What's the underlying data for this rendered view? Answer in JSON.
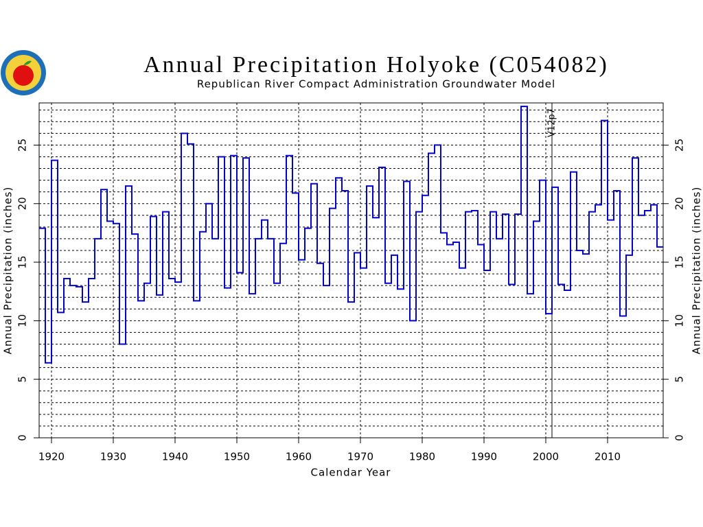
{
  "chart_data": {
    "type": "step",
    "title": "Annual Precipitation Holyoke (C054082)",
    "subtitle": "Republican River Compact Administration Groundwater Model",
    "x_label": "Calendar Year",
    "y_label": "Annual Precipitation (inches)",
    "x": [
      1918,
      1919,
      1920,
      1921,
      1922,
      1923,
      1924,
      1925,
      1926,
      1927,
      1928,
      1929,
      1930,
      1931,
      1932,
      1933,
      1934,
      1935,
      1936,
      1937,
      1938,
      1939,
      1940,
      1941,
      1942,
      1943,
      1944,
      1945,
      1946,
      1947,
      1948,
      1949,
      1950,
      1951,
      1952,
      1953,
      1954,
      1955,
      1956,
      1957,
      1958,
      1959,
      1960,
      1961,
      1962,
      1963,
      1964,
      1965,
      1966,
      1967,
      1968,
      1969,
      1970,
      1971,
      1972,
      1973,
      1974,
      1975,
      1976,
      1977,
      1978,
      1979,
      1980,
      1981,
      1982,
      1983,
      1984,
      1985,
      1986,
      1987,
      1988,
      1989,
      1990,
      1991,
      1992,
      1993,
      1994,
      1995,
      1996,
      1997,
      1998,
      1999,
      2000,
      2001,
      2002,
      2003,
      2004,
      2005,
      2006,
      2007,
      2008,
      2009,
      2010,
      2011,
      2012,
      2013,
      2014,
      2015,
      2016,
      2017,
      2018
    ],
    "series": [
      {
        "color": "#0000cc",
        "values": [
          17.9,
          6.4,
          23.7,
          10.7,
          13.6,
          13.0,
          12.9,
          11.6,
          13.6,
          17.0,
          21.2,
          18.5,
          18.3,
          8.0,
          21.5,
          17.4,
          11.7,
          13.2,
          18.9,
          12.2,
          19.3,
          13.6,
          13.3,
          26.0,
          25.1,
          11.7,
          17.6,
          20.0,
          17.0,
          24.0,
          12.8,
          24.1,
          14.1,
          23.9,
          12.3,
          17.0,
          18.6,
          17.0,
          13.2,
          16.6,
          24.1,
          20.9,
          15.2,
          17.9,
          21.7,
          14.9,
          13.0,
          19.6,
          22.2,
          21.1,
          11.6,
          15.8,
          14.5,
          21.5,
          18.8,
          23.1,
          13.2,
          15.6,
          12.7,
          21.9,
          10.0,
          19.3,
          20.7,
          24.3,
          25.0,
          17.5,
          16.5,
          16.7,
          14.5,
          19.3,
          19.4,
          16.5,
          14.3,
          19.3,
          17.0,
          19.1,
          13.1,
          19.1,
          28.3,
          12.3,
          18.5,
          22.0,
          10.6,
          21.4,
          13.1,
          12.6,
          22.7,
          16.0,
          15.7,
          19.3,
          19.9,
          27.1,
          18.6,
          21.1,
          10.4,
          15.6,
          23.9,
          19.0,
          19.4,
          19.9,
          16.3
        ]
      }
    ],
    "xlim": [
      1918,
      2019
    ],
    "xticks": [
      1920,
      1930,
      1940,
      1950,
      1960,
      1970,
      1980,
      1990,
      2000,
      2010
    ],
    "ylim": [
      0,
      28.6
    ],
    "yticks": [
      0,
      5,
      10,
      15,
      20,
      25
    ],
    "ygrid": [
      1,
      2,
      3,
      4,
      5,
      6,
      7,
      8,
      9,
      10,
      11,
      12,
      13,
      14,
      15,
      16,
      17,
      18,
      19,
      20,
      21,
      22,
      23,
      24,
      25,
      26,
      27,
      28
    ],
    "annotations": [
      {
        "text": "V12p7",
        "x": 2001
      }
    ],
    "grid": true
  }
}
